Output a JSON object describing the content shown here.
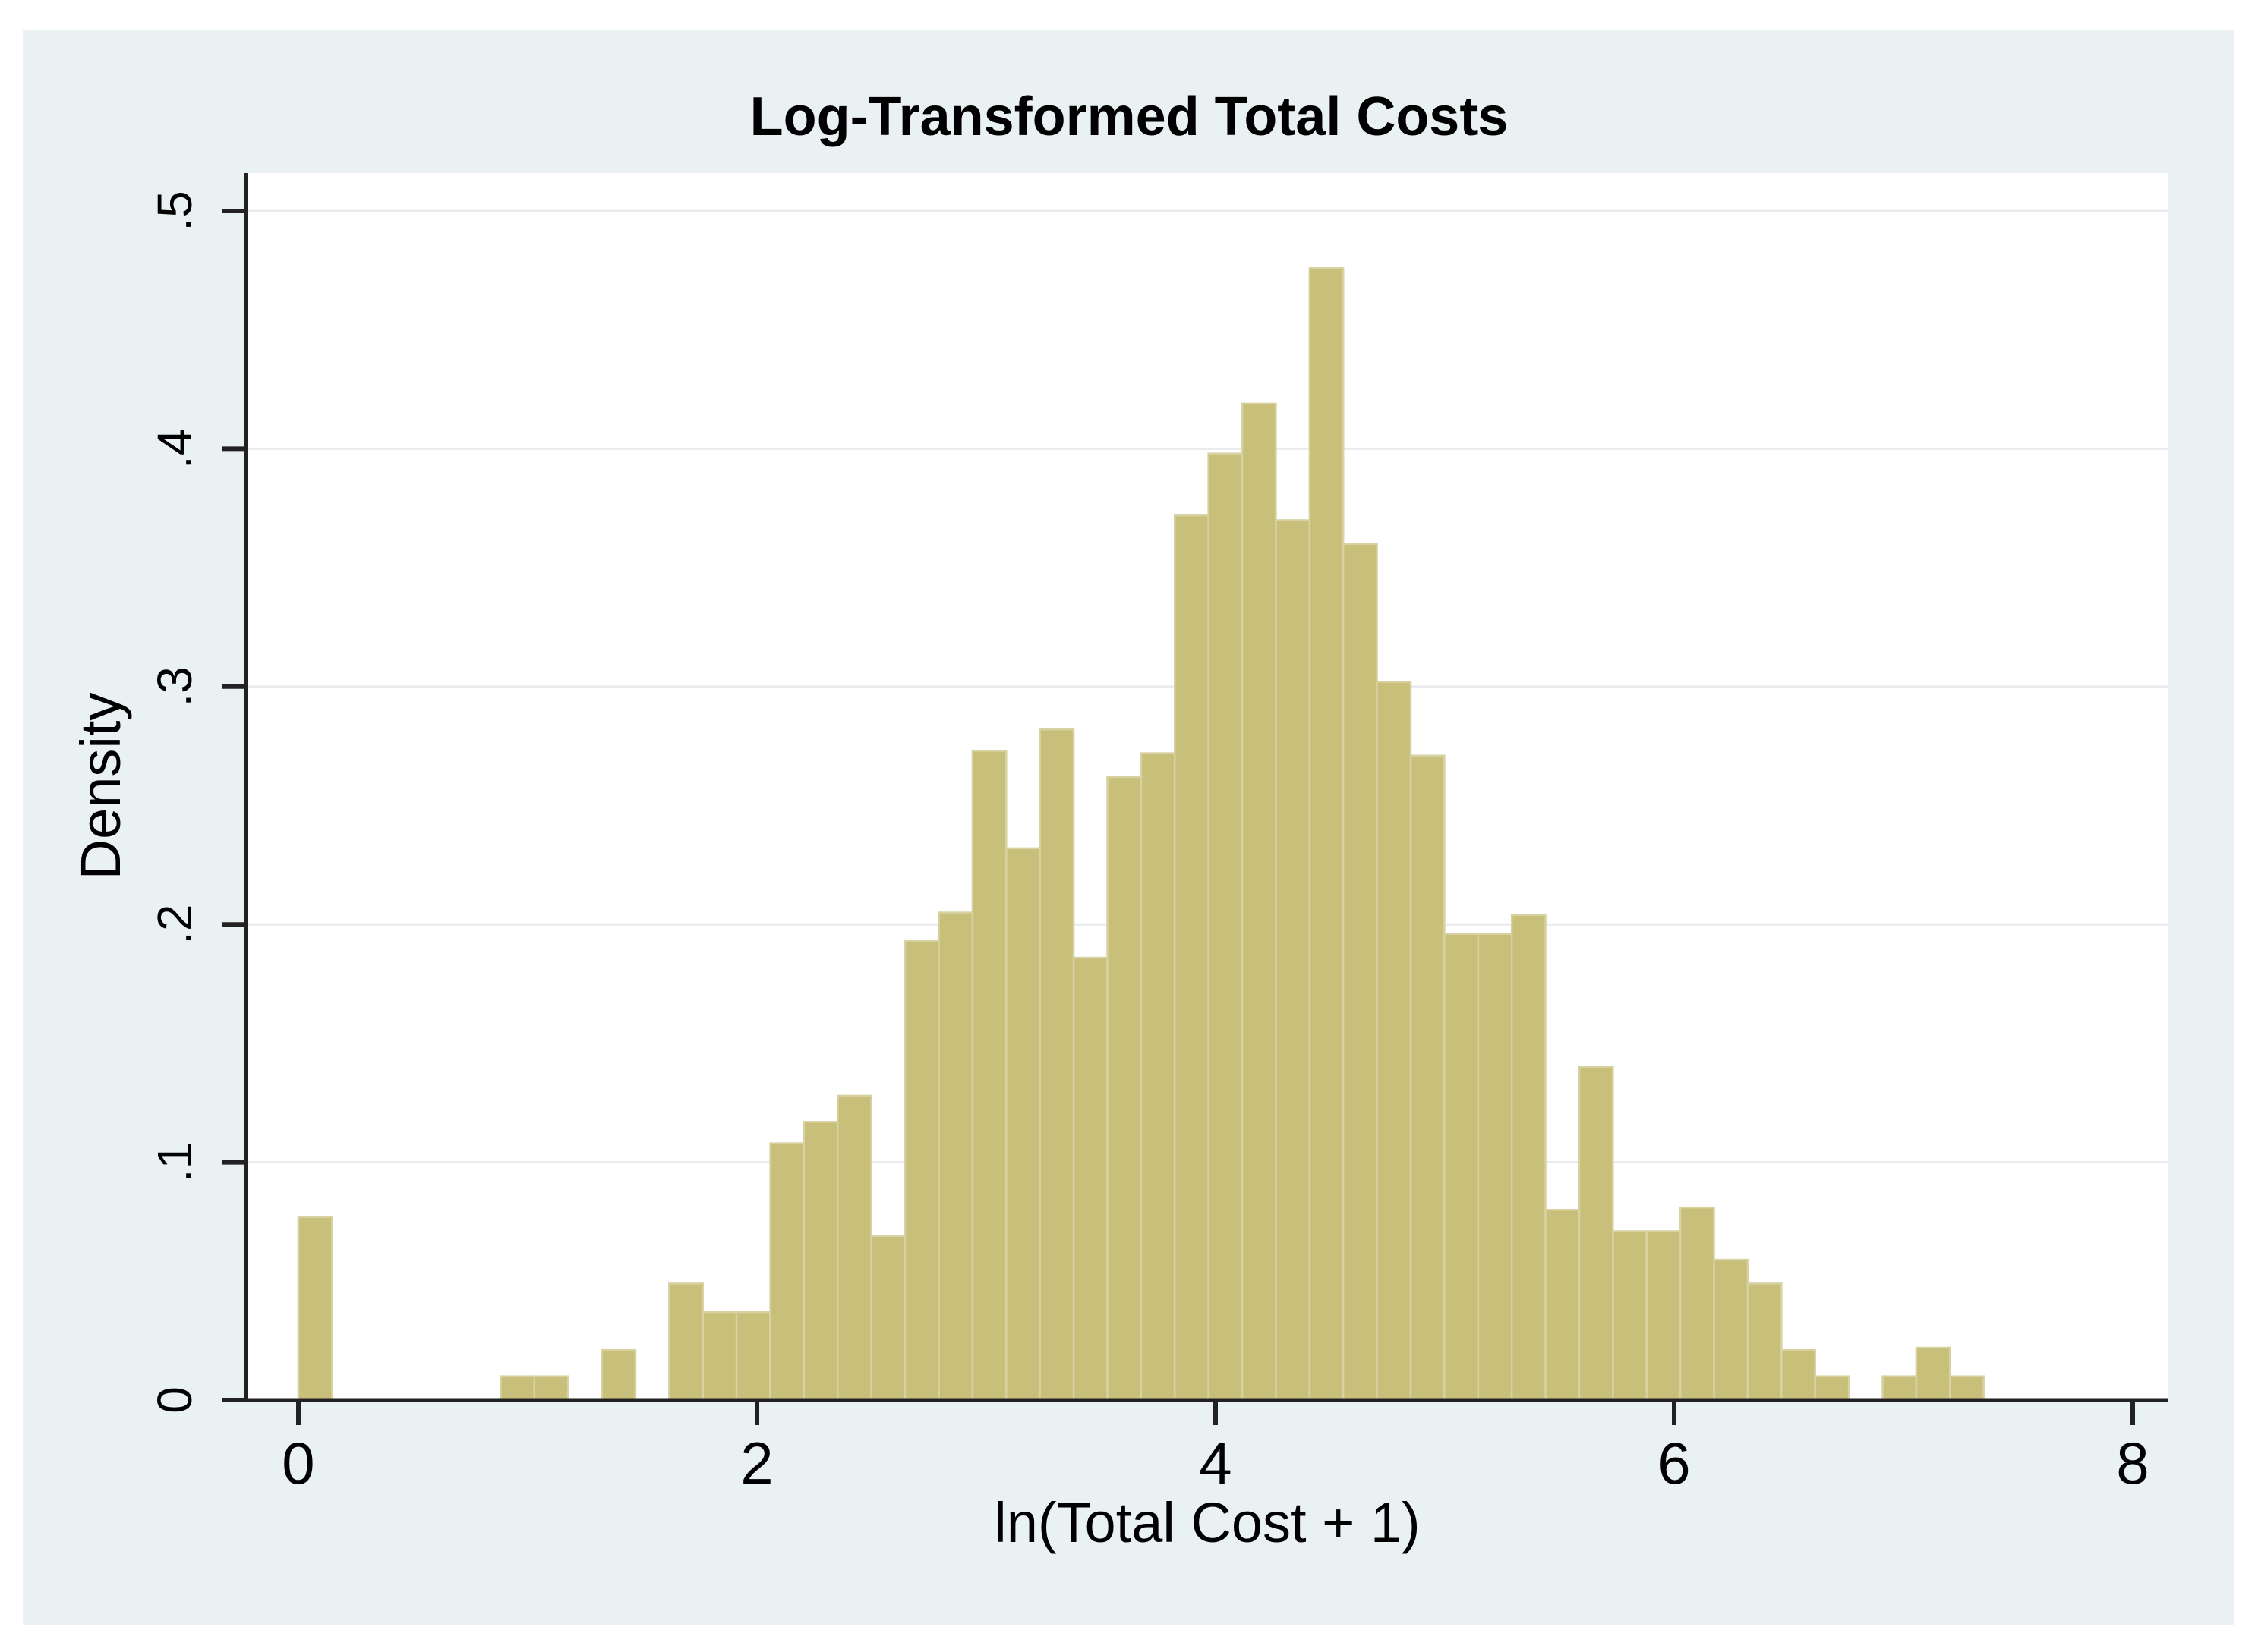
{
  "chart_data": {
    "type": "bar",
    "subtype": "histogram",
    "title": "Log-Transformed Total Costs",
    "xlabel": "ln(Total Cost + 1)",
    "ylabel": "Density",
    "xlim": [
      -0.23,
      8.15
    ],
    "ylim": [
      0,
      0.516
    ],
    "grid": "horizontal",
    "legend": "none",
    "x_ticks": [
      {
        "value": 0,
        "label": "0"
      },
      {
        "value": 2,
        "label": "2"
      },
      {
        "value": 4,
        "label": "4"
      },
      {
        "value": 6,
        "label": "6"
      },
      {
        "value": 8,
        "label": "8"
      }
    ],
    "y_ticks": [
      {
        "value": 0.0,
        "label": "0"
      },
      {
        "value": 0.1,
        "label": ".1"
      },
      {
        "value": 0.2,
        "label": ".2"
      },
      {
        "value": 0.3,
        "label": ".3"
      },
      {
        "value": 0.4,
        "label": ".4"
      },
      {
        "value": 0.5,
        "label": ".5"
      }
    ],
    "bin_width": 0.147,
    "bars": [
      {
        "x": 0.0,
        "density": 0.077
      },
      {
        "x": 0.882,
        "density": 0.01
      },
      {
        "x": 1.029,
        "density": 0.01
      },
      {
        "x": 1.323,
        "density": 0.021
      },
      {
        "x": 1.617,
        "density": 0.049
      },
      {
        "x": 1.764,
        "density": 0.037
      },
      {
        "x": 1.911,
        "density": 0.037
      },
      {
        "x": 2.058,
        "density": 0.108
      },
      {
        "x": 2.205,
        "density": 0.117
      },
      {
        "x": 2.352,
        "density": 0.128
      },
      {
        "x": 2.499,
        "density": 0.069
      },
      {
        "x": 2.646,
        "density": 0.193
      },
      {
        "x": 2.793,
        "density": 0.205
      },
      {
        "x": 2.94,
        "density": 0.273
      },
      {
        "x": 3.087,
        "density": 0.232
      },
      {
        "x": 3.234,
        "density": 0.282
      },
      {
        "x": 3.381,
        "density": 0.186
      },
      {
        "x": 3.528,
        "density": 0.262
      },
      {
        "x": 3.675,
        "density": 0.272
      },
      {
        "x": 3.822,
        "density": 0.372
      },
      {
        "x": 3.969,
        "density": 0.398
      },
      {
        "x": 4.116,
        "density": 0.419
      },
      {
        "x": 4.263,
        "density": 0.37
      },
      {
        "x": 4.41,
        "density": 0.476
      },
      {
        "x": 4.557,
        "density": 0.36
      },
      {
        "x": 4.704,
        "density": 0.302
      },
      {
        "x": 4.851,
        "density": 0.271
      },
      {
        "x": 4.998,
        "density": 0.196
      },
      {
        "x": 5.145,
        "density": 0.196
      },
      {
        "x": 5.292,
        "density": 0.204
      },
      {
        "x": 5.439,
        "density": 0.08
      },
      {
        "x": 5.586,
        "density": 0.14
      },
      {
        "x": 5.733,
        "density": 0.071
      },
      {
        "x": 5.88,
        "density": 0.071
      },
      {
        "x": 6.027,
        "density": 0.081
      },
      {
        "x": 6.174,
        "density": 0.059
      },
      {
        "x": 6.321,
        "density": 0.049
      },
      {
        "x": 6.468,
        "density": 0.021
      },
      {
        "x": 6.615,
        "density": 0.01
      },
      {
        "x": 6.909,
        "density": 0.01
      },
      {
        "x": 7.056,
        "density": 0.022
      },
      {
        "x": 7.203,
        "density": 0.01
      }
    ],
    "colors": {
      "bar_fill": "#c8c07a",
      "bar_outline": "#d8d2a2",
      "plot_bg": "#ffffff",
      "graph_bg": "#eaf1f3",
      "page_bg": "#ffffff",
      "grid": "#e8ecee",
      "axis": "#222222",
      "tick_text": "#000000",
      "title": "#233257"
    }
  }
}
